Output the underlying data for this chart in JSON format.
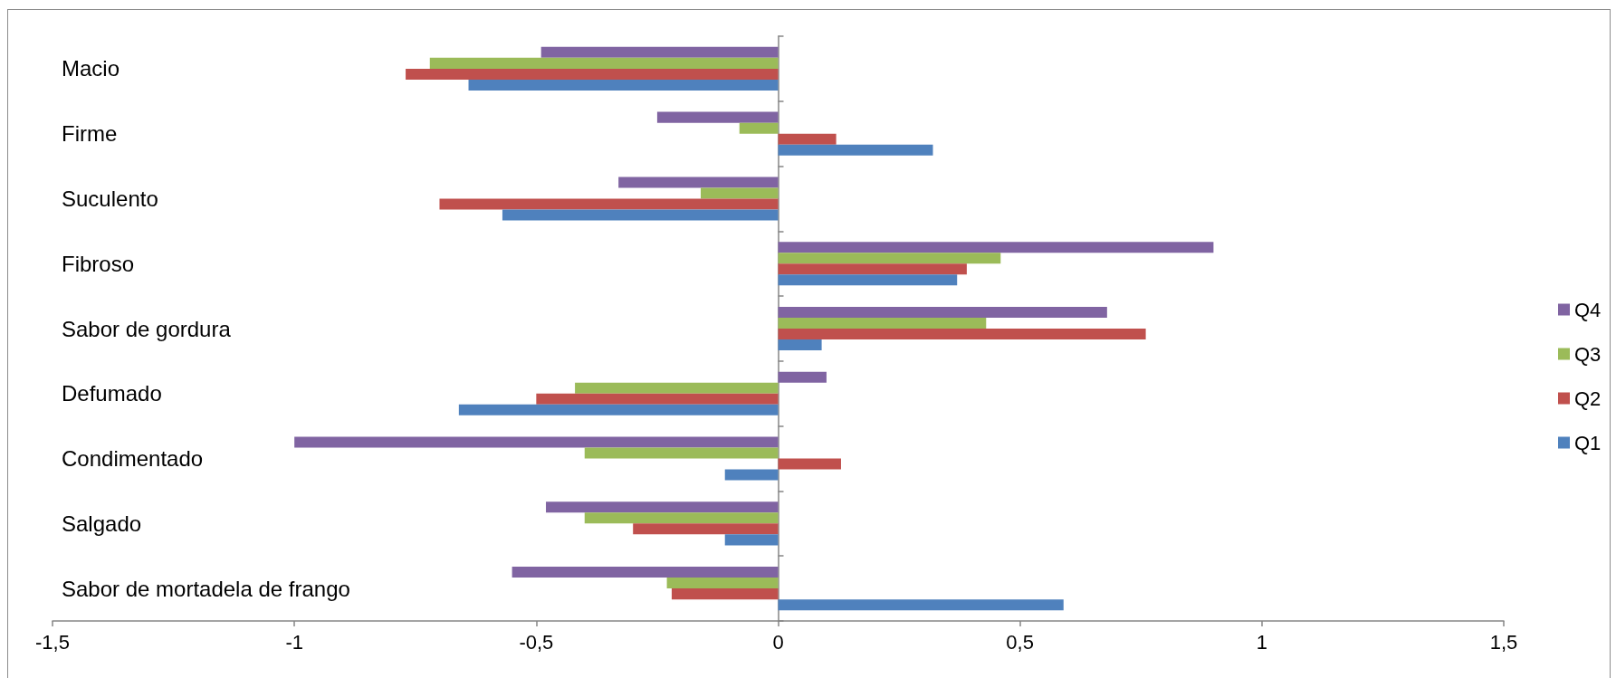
{
  "chart_data": {
    "type": "bar",
    "orientation": "horizontal",
    "categories": [
      "Macio",
      "Firme",
      "Suculento",
      "Fibroso",
      "Sabor de gordura",
      "Defumado",
      "Condimentado",
      "Salgado",
      "Sabor de mortadela de frango"
    ],
    "series": [
      {
        "name": "Q1",
        "color": "#4f81bd",
        "values": [
          -0.64,
          0.32,
          -0.57,
          0.37,
          0.09,
          -0.66,
          -0.11,
          -0.11,
          0.59
        ]
      },
      {
        "name": "Q2",
        "color": "#c0504d",
        "values": [
          -0.77,
          0.12,
          -0.7,
          0.39,
          0.76,
          -0.5,
          0.13,
          -0.3,
          -0.22
        ]
      },
      {
        "name": "Q3",
        "color": "#9bbb59",
        "values": [
          -0.72,
          -0.08,
          -0.16,
          0.46,
          0.43,
          -0.42,
          -0.4,
          -0.4,
          -0.23
        ]
      },
      {
        "name": "Q4",
        "color": "#8064a2",
        "values": [
          -0.49,
          -0.25,
          -0.33,
          0.9,
          0.68,
          0.1,
          -1.0,
          -0.48,
          -0.55
        ]
      }
    ],
    "xlim": [
      -1.5,
      1.5
    ],
    "xticks": [
      {
        "value": -1.5,
        "label": "-1,5"
      },
      -1,
      {
        "value": -0.5,
        "label": "-0,5"
      },
      0,
      {
        "value": 0.5,
        "label": "0,5"
      },
      1,
      {
        "value": 1.5,
        "label": "1,5"
      }
    ],
    "legend": "right"
  }
}
